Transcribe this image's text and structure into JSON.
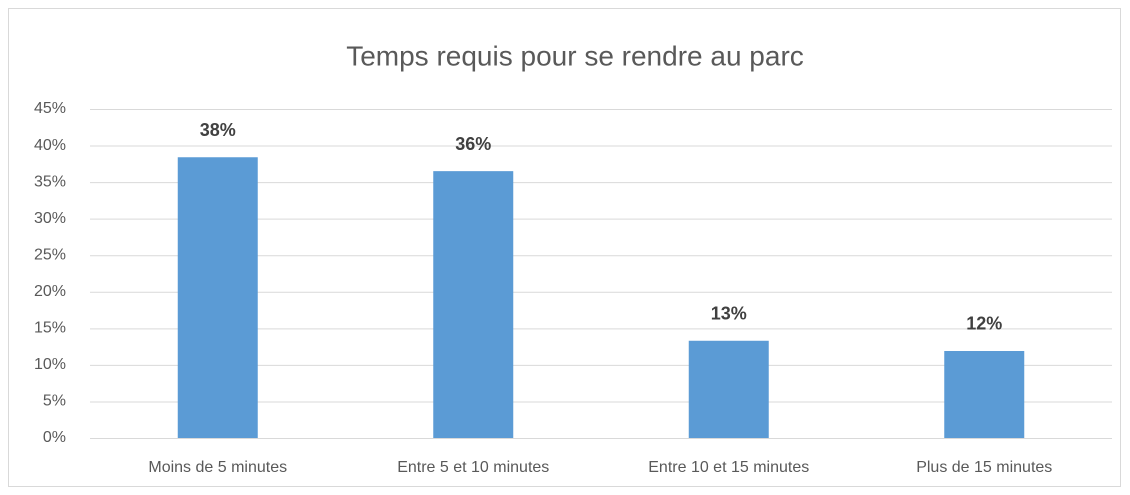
{
  "chart_data": {
    "type": "bar",
    "title": "Temps requis pour se rendre au parc",
    "categories": [
      "Moins de 5 minutes",
      "Entre 5 et 10 minutes",
      "Entre 10 et 15 minutes",
      "Plus de 15 minutes"
    ],
    "values": [
      38.4,
      36.5,
      13.3,
      11.9
    ],
    "value_labels": [
      "38%",
      "36%",
      "13%",
      "12%"
    ],
    "color": "#5b9bd5",
    "ylim": [
      0,
      45
    ],
    "yticks": [
      {
        "value": 0,
        "label": "0%"
      },
      {
        "value": 5,
        "label": "5%"
      },
      {
        "value": 10,
        "label": "10%"
      },
      {
        "value": 15,
        "label": "15%"
      },
      {
        "value": 20,
        "label": "20%"
      },
      {
        "value": 25,
        "label": "25%"
      },
      {
        "value": 30,
        "label": "30%"
      },
      {
        "value": 35,
        "label": "35%"
      },
      {
        "value": 40,
        "label": "40%"
      },
      {
        "value": 45,
        "label": "45%"
      }
    ],
    "grid": true
  }
}
